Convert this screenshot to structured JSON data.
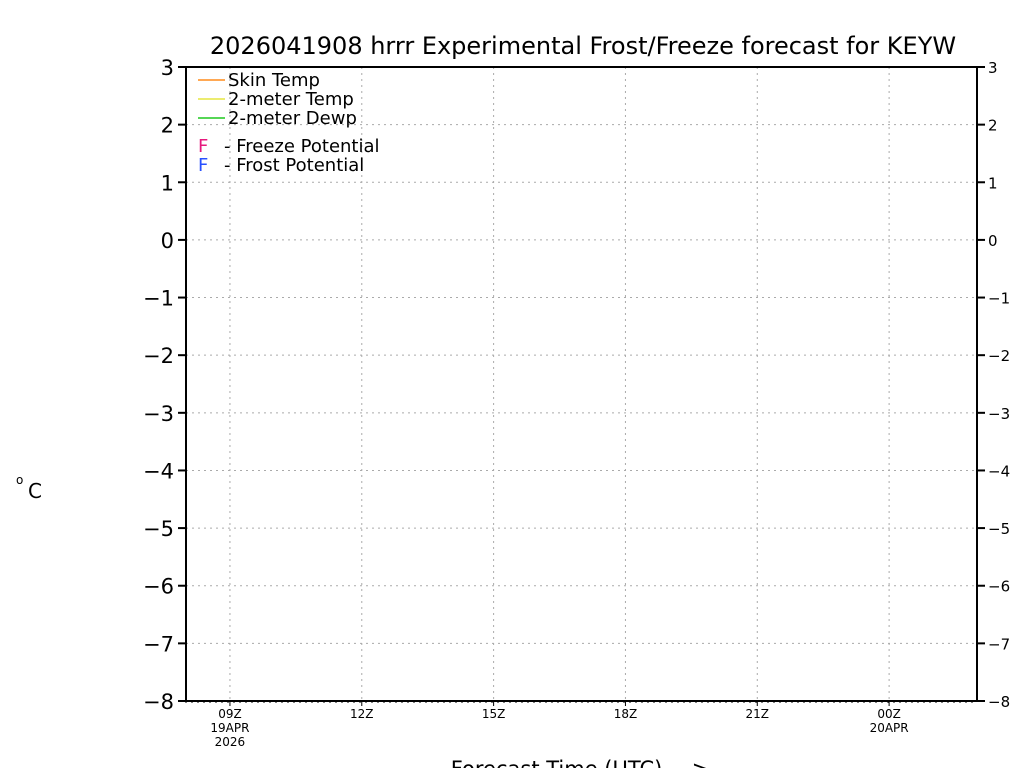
{
  "chart_data": {
    "type": "line",
    "title": "2026041908 hrrr Experimental Frost/Freeze forecast for KEYW",
    "xlabel": "Forecast Time (UTC) --->",
    "ylabel": "°C",
    "ylabel_parts": {
      "degree": "o",
      "unit": "C"
    },
    "ylim": [
      -8,
      3
    ],
    "yticks": [
      3,
      2,
      1,
      0,
      -1,
      -2,
      -3,
      -4,
      -5,
      -6,
      -7,
      -8
    ],
    "xlim_hours": [
      8,
      26
    ],
    "xticks": [
      {
        "hour": 9,
        "label": "09Z",
        "sub": [
          "19APR",
          "2026"
        ]
      },
      {
        "hour": 12,
        "label": "12Z",
        "sub": []
      },
      {
        "hour": 15,
        "label": "15Z",
        "sub": []
      },
      {
        "hour": 18,
        "label": "18Z",
        "sub": []
      },
      {
        "hour": 21,
        "label": "21Z",
        "sub": []
      },
      {
        "hour": 24,
        "label": "00Z",
        "sub": [
          "20APR"
        ]
      }
    ],
    "grid": true,
    "legend_position": "top-left",
    "series": [
      {
        "name": "Skin Temp",
        "color": "#ff8c1a",
        "values": []
      },
      {
        "name": "2-meter Temp",
        "color": "#e6e640",
        "values": []
      },
      {
        "name": "2-meter Dewp",
        "color": "#1ec81e",
        "values": []
      }
    ],
    "markers": [
      {
        "symbol": "F",
        "name": "- Freeze Potential",
        "color": "#e6197d"
      },
      {
        "symbol": "F",
        "name": "- Frost Potential",
        "color": "#2850ff"
      }
    ]
  }
}
